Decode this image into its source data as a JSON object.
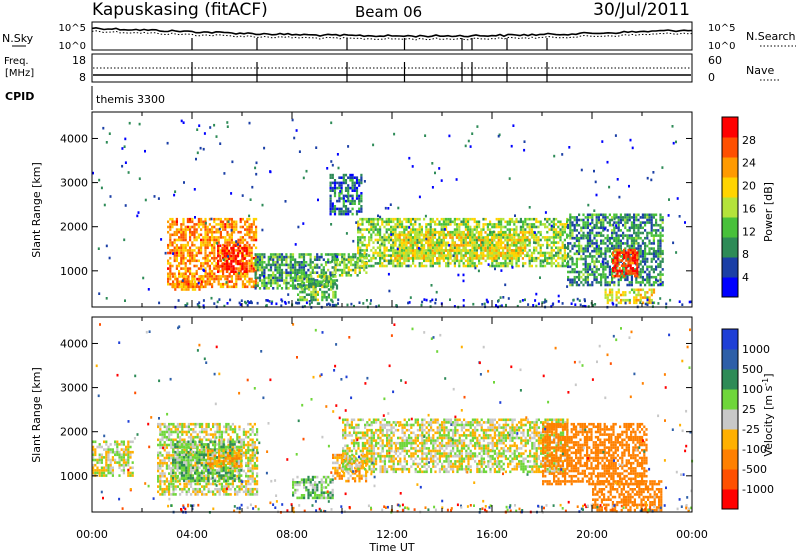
{
  "header": {
    "station": "Kapuskasing (fitACF)",
    "beam": "Beam 06",
    "date": "30/Jul/2011"
  },
  "top_panels": {
    "noise": {
      "left_label_line1": "N.Sky",
      "left_ticks": [
        "10^5",
        "10^0"
      ],
      "right_ticks": [
        "10^5",
        "10^0"
      ],
      "right_label": "N.Search"
    },
    "freq": {
      "left_label_line1": "Freq.",
      "left_label_line2": "[MHz]",
      "left_ticks": [
        "18",
        "8"
      ],
      "right_ticks": [
        "60",
        "0"
      ],
      "right_label": "Nave"
    },
    "cpid": {
      "left_label": "CPID",
      "program": "themis 3300"
    }
  },
  "power_panel": {
    "ylabel": "Slant Range [km]",
    "yticks": [
      "4000",
      "3000",
      "2000",
      "1000"
    ],
    "colorbar_label": "Power [dB]",
    "colorbar_ticks": [
      "28",
      "24",
      "20",
      "16",
      "12",
      "8",
      "4"
    ],
    "colors": [
      "#0000ff",
      "#1b3fa6",
      "#2e8b57",
      "#48c13a",
      "#b4e33a",
      "#ffd400",
      "#ff9a00",
      "#ff5000",
      "#ff0000"
    ]
  },
  "velocity_panel": {
    "ylabel": "Slant Range [km]",
    "yticks": [
      "4000",
      "3000",
      "2000",
      "1000"
    ],
    "colorbar_label": "Velocity [m s^-1]",
    "colorbar_ticks": [
      "1000",
      "500",
      "100",
      "25",
      "-25",
      "-100",
      "-500",
      "-1000"
    ],
    "colors": [
      "#1f3fd6",
      "#2e5fa8",
      "#2e8b57",
      "#6fd63a",
      "#c8c8c8",
      "#ffb000",
      "#ff8000",
      "#ff5000",
      "#ff0000"
    ]
  },
  "xaxis": {
    "ticks": [
      "00:00",
      "04:00",
      "08:00",
      "12:00",
      "16:00",
      "20:00",
      "00:00"
    ],
    "label": "Time UT"
  },
  "chart_data": [
    {
      "type": "heatmap",
      "name": "power",
      "x_hours": [
        0,
        24
      ],
      "ylim": [
        180,
        4600
      ],
      "clim_db": [
        0,
        30
      ],
      "regions": [
        {
          "t": [
            3.0,
            6.6
          ],
          "r": [
            650,
            2200
          ],
          "db": 22
        },
        {
          "t": [
            5.0,
            6.2
          ],
          "r": [
            1000,
            1600
          ],
          "db": 28
        },
        {
          "t": [
            3.2,
            4.4
          ],
          "r": [
            600,
            900
          ],
          "db": 22
        },
        {
          "t": [
            6.5,
            9.8
          ],
          "r": [
            600,
            1400
          ],
          "db": 10
        },
        {
          "t": [
            8.2,
            9.7
          ],
          "r": [
            350,
            900
          ],
          "db": 12
        },
        {
          "t": [
            9.7,
            11.0
          ],
          "r": [
            900,
            1400
          ],
          "db": 13
        },
        {
          "t": [
            9.5,
            10.8
          ],
          "r": [
            2300,
            3200
          ],
          "db": 7
        },
        {
          "t": [
            10.6,
            19.0
          ],
          "r": [
            1100,
            2200
          ],
          "db": 14
        },
        {
          "t": [
            12.0,
            17.5
          ],
          "r": [
            1300,
            1900
          ],
          "db": 17
        },
        {
          "t": [
            19.0,
            22.8
          ],
          "r": [
            700,
            2300
          ],
          "db": 9
        },
        {
          "t": [
            20.8,
            21.8
          ],
          "r": [
            900,
            1500
          ],
          "db": 27
        },
        {
          "t": [
            20.5,
            22.5
          ],
          "r": [
            250,
            600
          ],
          "db": 18
        }
      ]
    },
    {
      "type": "heatmap",
      "name": "velocity",
      "x_hours": [
        0,
        24
      ],
      "ylim": [
        180,
        4600
      ],
      "clim_ms": [
        -1000,
        1000
      ],
      "regions": [
        {
          "t": [
            0.0,
            1.6
          ],
          "r": [
            1000,
            1800
          ],
          "v": 0
        },
        {
          "t": [
            2.6,
            6.6
          ],
          "r": [
            600,
            2200
          ],
          "v": 0
        },
        {
          "t": [
            3.2,
            6.0
          ],
          "r": [
            900,
            1800
          ],
          "v": 80
        },
        {
          "t": [
            4.6,
            6.0
          ],
          "r": [
            1200,
            1600
          ],
          "v": -90
        },
        {
          "t": [
            8.0,
            9.6
          ],
          "r": [
            500,
            1000
          ],
          "v": 70
        },
        {
          "t": [
            9.6,
            11.0
          ],
          "r": [
            900,
            1500
          ],
          "v": -70
        },
        {
          "t": [
            10.0,
            19.0
          ],
          "r": [
            1100,
            2300
          ],
          "v": 0
        },
        {
          "t": [
            18.0,
            22.2
          ],
          "r": [
            800,
            2200
          ],
          "v": -300
        },
        {
          "t": [
            20.0,
            22.8
          ],
          "r": [
            250,
            900
          ],
          "v": -400
        }
      ]
    }
  ]
}
